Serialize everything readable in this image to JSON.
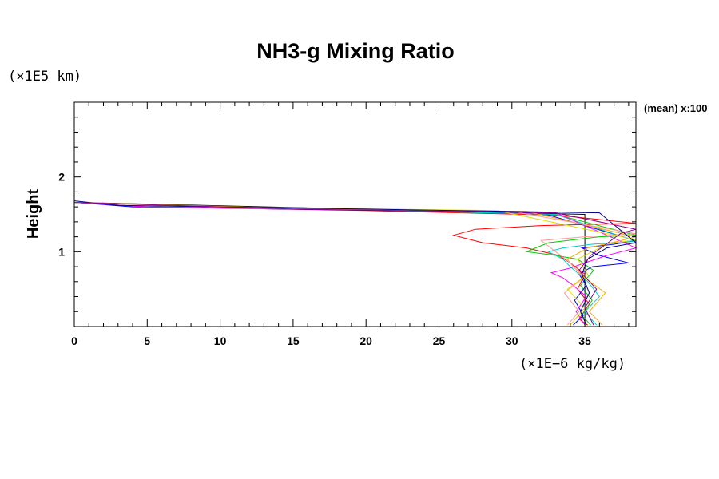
{
  "chart_data": {
    "type": "line",
    "title": "NH3-g Mixing Ratio",
    "xlabel": "",
    "ylabel": "Height",
    "x_unit_label": "(×1E−6 kg/kg)",
    "y_unit_label": "(×1E5 km)",
    "annotation": "(mean) x:100",
    "xlim": [
      0,
      38.5
    ],
    "ylim": [
      0,
      3.0
    ],
    "x_ticks": [
      0,
      5,
      10,
      15,
      20,
      25,
      30,
      35
    ],
    "x_tick_labels": [
      "0",
      "5",
      "10",
      "15",
      "20",
      "25",
      "30",
      "35"
    ],
    "y_ticks": [
      1,
      2
    ],
    "y_tick_labels": [
      "1",
      "2"
    ],
    "grid": false,
    "series": [
      {
        "name": "black",
        "color": "#000000",
        "x": [
          35.0,
          35.0,
          35.0,
          35.0,
          35.0,
          35.0,
          35.0,
          35.0,
          35.0,
          35.0,
          35.0,
          35.0,
          35.0,
          35.0,
          0.0
        ],
        "y": [
          0.02,
          0.1,
          0.2,
          0.3,
          0.4,
          0.5,
          0.6,
          0.7,
          0.8,
          0.9,
          1.0,
          1.1,
          1.2,
          1.5,
          1.66
        ]
      },
      {
        "name": "red",
        "color": "#ff0000",
        "x": [
          35.2,
          34.6,
          35.3,
          34.5,
          35.0,
          34.0,
          33.2,
          31.0,
          28.0,
          26.0,
          27.5,
          32.0,
          38.5,
          33.0,
          20.0,
          5.0,
          0.0
        ],
        "y": [
          0.02,
          0.1,
          0.3,
          0.5,
          0.7,
          0.85,
          0.95,
          1.05,
          1.12,
          1.22,
          1.3,
          1.35,
          1.38,
          1.49,
          1.55,
          1.6,
          1.66
        ]
      },
      {
        "name": "green",
        "color": "#00cc00",
        "x": [
          35.4,
          34.8,
          35.5,
          34.7,
          35.6,
          34.5,
          33.0,
          31.0,
          32.5,
          36.0,
          38.5,
          33.0,
          20.0,
          5.0,
          0.0
        ],
        "y": [
          0.02,
          0.15,
          0.35,
          0.55,
          0.75,
          0.9,
          0.95,
          1.0,
          1.12,
          1.2,
          1.22,
          1.5,
          1.56,
          1.6,
          1.66
        ]
      },
      {
        "name": "blue",
        "color": "#0000ff",
        "x": [
          34.2,
          34.9,
          34.3,
          35.1,
          34.6,
          35.5,
          38.0,
          36.0,
          34.8,
          37.0,
          38.5,
          32.0,
          18.0,
          4.0,
          0.0
        ],
        "y": [
          0.02,
          0.15,
          0.35,
          0.55,
          0.7,
          0.8,
          0.85,
          0.95,
          1.05,
          1.1,
          1.15,
          1.52,
          1.56,
          1.6,
          1.66
        ]
      },
      {
        "name": "cyan",
        "color": "#00cccc",
        "x": [
          35.8,
          35.0,
          36.0,
          35.2,
          34.0,
          33.5,
          32.5,
          33.5,
          35.5,
          38.5,
          33.0,
          20.0,
          5.0,
          0.0
        ],
        "y": [
          0.02,
          0.2,
          0.4,
          0.6,
          0.8,
          0.9,
          1.0,
          1.05,
          1.1,
          1.14,
          1.5,
          1.56,
          1.6,
          1.66
        ]
      },
      {
        "name": "magenta",
        "color": "#ff00ff",
        "x": [
          35.0,
          34.4,
          35.1,
          34.2,
          33.5,
          32.7,
          34.0,
          35.0,
          36.5,
          38.5,
          33.0,
          20.0,
          5.0,
          0.0
        ],
        "y": [
          0.02,
          0.2,
          0.4,
          0.55,
          0.65,
          0.72,
          0.78,
          0.85,
          0.95,
          1.05,
          1.52,
          1.56,
          1.6,
          1.66
        ]
      },
      {
        "name": "orange",
        "color": "#ffaa00",
        "x": [
          36.2,
          35.3,
          36.4,
          35.0,
          34.2,
          33.8,
          35.2,
          37.5,
          38.5,
          31.0,
          15.0,
          0.0
        ],
        "y": [
          0.02,
          0.2,
          0.45,
          0.65,
          0.8,
          0.9,
          1.05,
          1.15,
          1.2,
          1.54,
          1.58,
          1.66
        ]
      },
      {
        "name": "pink",
        "color": "#ff9999",
        "x": [
          33.8,
          34.6,
          33.6,
          34.9,
          34.0,
          32.0,
          35.0,
          38.5,
          30.0,
          12.0,
          0.0
        ],
        "y": [
          0.02,
          0.2,
          0.45,
          0.65,
          0.85,
          1.15,
          1.2,
          1.24,
          1.54,
          1.58,
          1.66
        ]
      },
      {
        "name": "yellow",
        "color": "#dddd00",
        "x": [
          34.0,
          35.0,
          33.8,
          35.2,
          34.5,
          36.5,
          38.5,
          29.0,
          10.0,
          0.0
        ],
        "y": [
          0.02,
          0.25,
          0.5,
          0.7,
          0.9,
          1.1,
          1.16,
          1.55,
          1.6,
          1.66
        ]
      },
      {
        "name": "navy",
        "color": "#000088",
        "x": [
          35.1,
          34.7,
          35.3,
          34.8,
          35.2,
          36.5,
          38.5,
          36.0,
          20.0,
          3.0,
          0.0
        ],
        "y": [
          0.02,
          0.2,
          0.45,
          0.7,
          0.9,
          1.05,
          1.12,
          1.52,
          1.57,
          1.62,
          1.68
        ]
      },
      {
        "name": "purple",
        "color": "#880088",
        "x": [
          35.6,
          35.0,
          35.8,
          34.6,
          35.4,
          37.5,
          38.5,
          33.0,
          15.0,
          0.0,
          0.0
        ],
        "y": [
          0.02,
          0.25,
          0.5,
          0.75,
          0.95,
          1.25,
          1.3,
          1.52,
          1.57,
          1.66,
          3.0
        ]
      }
    ]
  }
}
